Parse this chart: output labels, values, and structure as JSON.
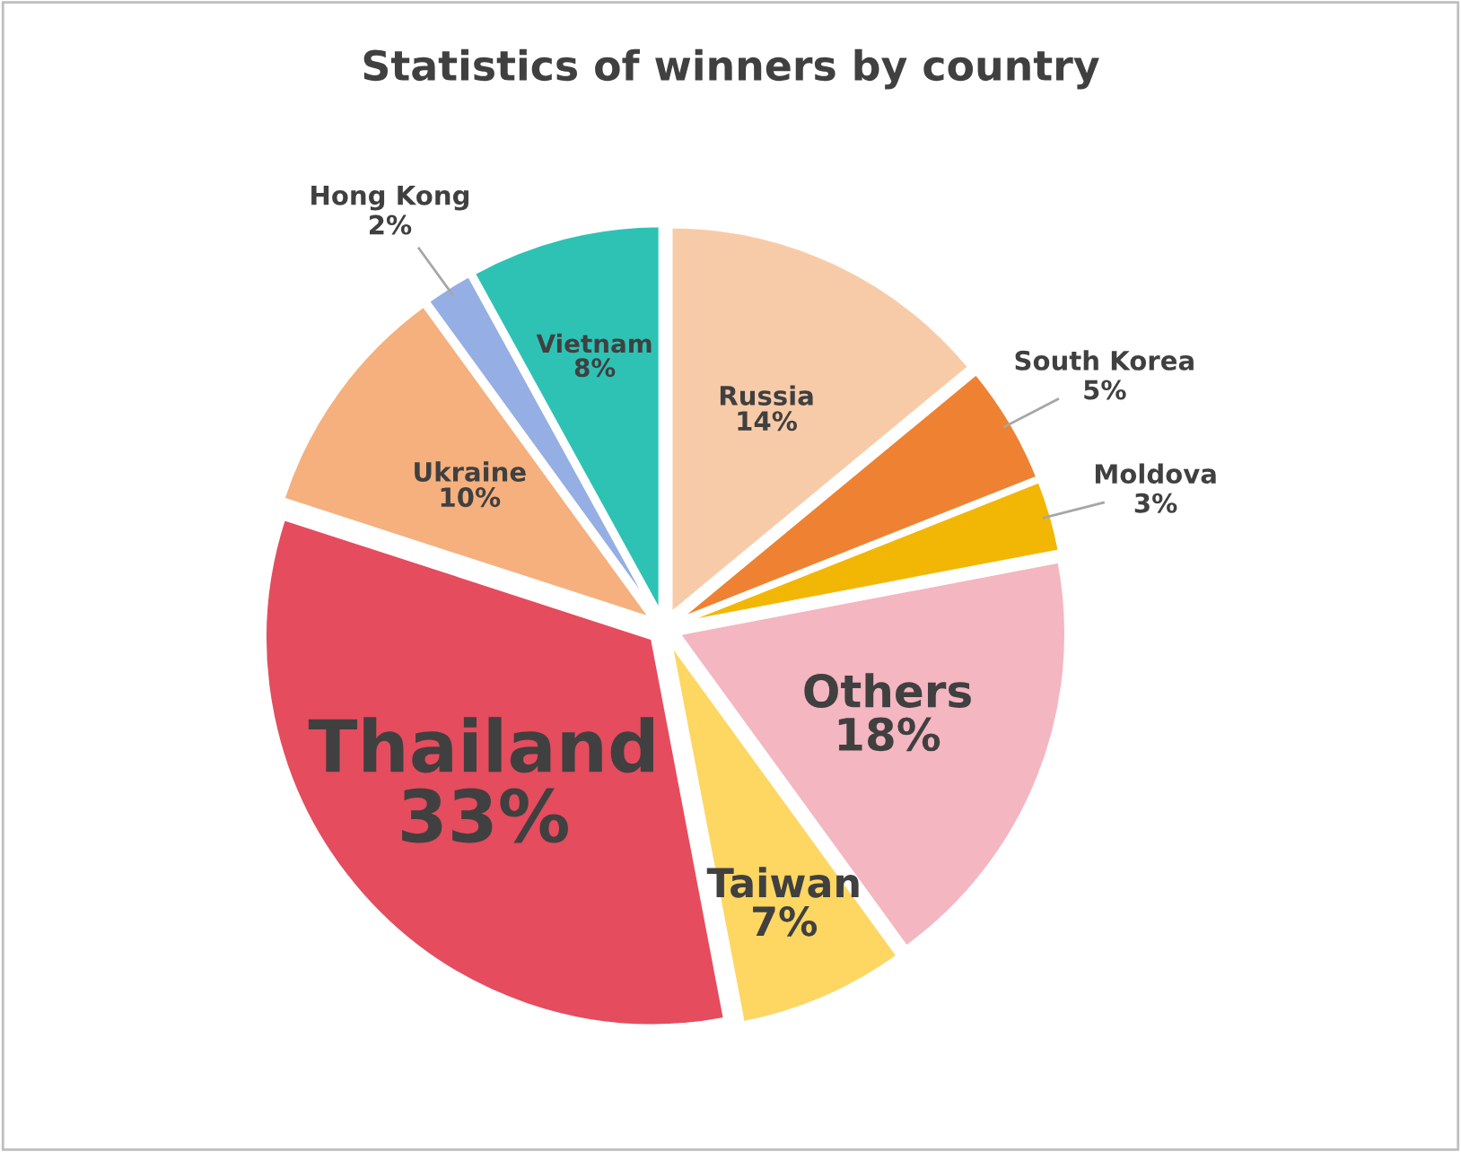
{
  "chart_data": {
    "type": "pie",
    "title": "Statistics of winners by country",
    "categories": [
      "Russia",
      "South Korea",
      "Moldova",
      "Others",
      "Taiwan",
      "Thailand",
      "Ukraine",
      "Hong Kong",
      "Vietnam"
    ],
    "values": [
      14,
      5,
      3,
      18,
      7,
      33,
      10,
      2,
      8
    ],
    "value_labels": [
      "14%",
      "5%",
      "3%",
      "18%",
      "7%",
      "33%",
      "10%",
      "2%",
      "8%"
    ],
    "colors": [
      "#f8cba8",
      "#ee8232",
      "#f2b705",
      "#f4b6c0",
      "#fdd762",
      "#e54c5e",
      "#f5b07e",
      "#95aee3",
      "#2ec2b5"
    ],
    "legend": false
  }
}
